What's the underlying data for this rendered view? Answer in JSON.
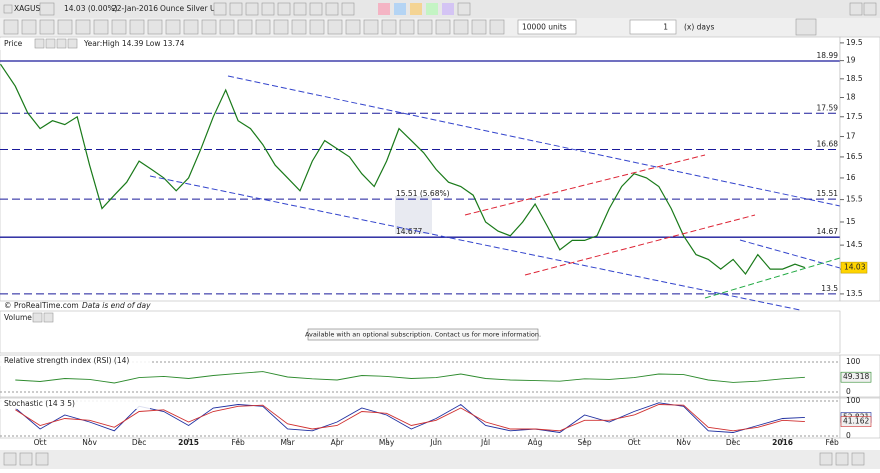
{
  "toolbar": {
    "symbol": "XAGUSD",
    "change": "14.03 (0.00%)",
    "date": "22-Jan-2016",
    "description": "Ounce Silver USD",
    "units": "10000 units",
    "days_value": "1",
    "days_label": "(x) days"
  },
  "chart_data": {
    "type": "line",
    "log": true,
    "panel_label": "Price",
    "stats": "Year:High 14.39 Low 13.74",
    "footer": "© ProRealTime.com",
    "footer_note": "Data is end of day",
    "xlim": [
      0.19,
      17.16
    ],
    "ylim": [
      13.38,
      19.64
    ],
    "xticks": [
      {
        "value": 1,
        "label": "Oct"
      },
      {
        "value": 2,
        "label": "Nov"
      },
      {
        "value": 3,
        "label": "Dec"
      },
      {
        "value": 4,
        "label": "2015"
      },
      {
        "value": 5,
        "label": "Feb"
      },
      {
        "value": 6,
        "label": "Mar"
      },
      {
        "value": 7,
        "label": "Apr"
      },
      {
        "value": 8,
        "label": "May"
      },
      {
        "value": 9,
        "label": "Jun"
      },
      {
        "value": 10,
        "label": "Jul"
      },
      {
        "value": 11,
        "label": "Aug"
      },
      {
        "value": 12,
        "label": "Sep"
      },
      {
        "value": 13,
        "label": "Oct"
      },
      {
        "value": 14,
        "label": "Nov"
      },
      {
        "value": 15,
        "label": "Dec"
      },
      {
        "value": 16,
        "label": "2016"
      },
      {
        "value": 17,
        "label": "Feb"
      }
    ],
    "yticks": [
      13.5,
      14,
      14.5,
      15,
      15.5,
      16,
      16.5,
      17,
      17.5,
      18,
      18.5,
      19,
      19.5
    ],
    "x": [
      0.2,
      0.5,
      0.75,
      1,
      1.25,
      1.5,
      1.75,
      2,
      2.25,
      2.5,
      2.75,
      3,
      3.25,
      3.5,
      3.75,
      4,
      4.25,
      4.5,
      4.75,
      5,
      5.25,
      5.5,
      5.75,
      6,
      6.25,
      6.5,
      6.75,
      7,
      7.25,
      7.5,
      7.75,
      8,
      8.25,
      8.5,
      8.75,
      9,
      9.25,
      9.5,
      9.75,
      10,
      10.25,
      10.5,
      10.75,
      11,
      11.25,
      11.5,
      11.75,
      12,
      12.25,
      12.5,
      12.75,
      13,
      13.25,
      13.5,
      13.75,
      14,
      14.25,
      14.5,
      14.75,
      15,
      15.25,
      15.5,
      15.75,
      16,
      16.25,
      16.45
    ],
    "series": [
      {
        "color": "#1a7a1a",
        "values": [
          18.9,
          18.3,
          17.6,
          17.2,
          17.4,
          17.3,
          17.5,
          16.3,
          15.3,
          15.6,
          15.9,
          16.4,
          16.2,
          16.0,
          15.7,
          16.0,
          16.7,
          17.5,
          18.2,
          17.4,
          17.2,
          16.8,
          16.3,
          16.0,
          15.7,
          16.4,
          16.9,
          16.7,
          16.5,
          16.1,
          15.8,
          16.4,
          17.2,
          16.9,
          16.6,
          16.2,
          15.9,
          15.8,
          15.6,
          15.0,
          14.8,
          14.7,
          15.0,
          15.4,
          14.9,
          14.4,
          14.6,
          14.6,
          14.7,
          15.3,
          15.8,
          16.1,
          16.0,
          15.8,
          15.3,
          14.7,
          14.3,
          14.2,
          14.0,
          14.2,
          13.9,
          14.3,
          14.0,
          14.0,
          14.1,
          14.03
        ]
      }
    ],
    "levels": [
      {
        "value": 18.99,
        "style": "solid"
      },
      {
        "value": 17.59,
        "style": "dashed"
      },
      {
        "value": 16.68,
        "style": "dashed"
      },
      {
        "value": 15.51,
        "style": "dashed"
      },
      {
        "value": 14.67,
        "style": "solid"
      },
      {
        "value": 13.5,
        "style": "dashed"
      }
    ],
    "annotations": [
      "15.51 (5.68%)",
      "14.677"
    ],
    "last": 14.03
  },
  "volume": {
    "title": "Volume",
    "message": "Available with an optional subscription. Contact us for more information."
  },
  "indicators": [
    {
      "title": "Relative strength index (RSI) (14)",
      "ylim": [
        0,
        100
      ],
      "yticks": [
        0,
        100
      ],
      "x": [
        0.5,
        1,
        1.5,
        2,
        2.5,
        3,
        3.5,
        4,
        4.5,
        5,
        5.5,
        6,
        6.5,
        7,
        7.5,
        8,
        8.5,
        9,
        9.5,
        10,
        10.5,
        11,
        11.5,
        12,
        12.5,
        13,
        13.5,
        14,
        14.5,
        15,
        15.5,
        16,
        16.45
      ],
      "series": [
        {
          "color": "#2e8b2e",
          "values": [
            40,
            35,
            45,
            42,
            30,
            48,
            52,
            45,
            55,
            62,
            68,
            50,
            44,
            40,
            55,
            52,
            45,
            48,
            60,
            45,
            40,
            38,
            36,
            44,
            42,
            48,
            60,
            58,
            40,
            32,
            36,
            44,
            49
          ]
        }
      ],
      "last_labels": [
        49.318
      ]
    },
    {
      "title": "Stochastic (14 3 5)",
      "ylim": [
        0,
        100
      ],
      "yticks": [
        0,
        100
      ],
      "x": [
        0.5,
        1,
        1.5,
        2,
        2.5,
        3,
        3.5,
        4,
        4.5,
        5,
        5.5,
        6,
        6.5,
        7,
        7.5,
        8,
        8.5,
        9,
        9.5,
        10,
        10.5,
        11,
        11.5,
        12,
        12.5,
        13,
        13.5,
        14,
        14.5,
        15,
        15.5,
        16,
        16.45
      ],
      "series": [
        {
          "color": "#1f2fa0",
          "values": [
            80,
            20,
            60,
            40,
            15,
            85,
            70,
            30,
            80,
            90,
            85,
            20,
            15,
            40,
            80,
            60,
            20,
            50,
            90,
            30,
            15,
            20,
            10,
            60,
            40,
            70,
            95,
            85,
            15,
            10,
            30,
            50,
            53
          ]
        },
        {
          "color": "#d03030",
          "values": [
            75,
            30,
            50,
            45,
            25,
            70,
            75,
            40,
            70,
            85,
            88,
            35,
            20,
            30,
            70,
            65,
            30,
            45,
            80,
            40,
            20,
            20,
            15,
            45,
            45,
            60,
            90,
            88,
            25,
            15,
            25,
            45,
            41
          ]
        }
      ],
      "last_labels": [
        52.821,
        41.162
      ]
    }
  ]
}
